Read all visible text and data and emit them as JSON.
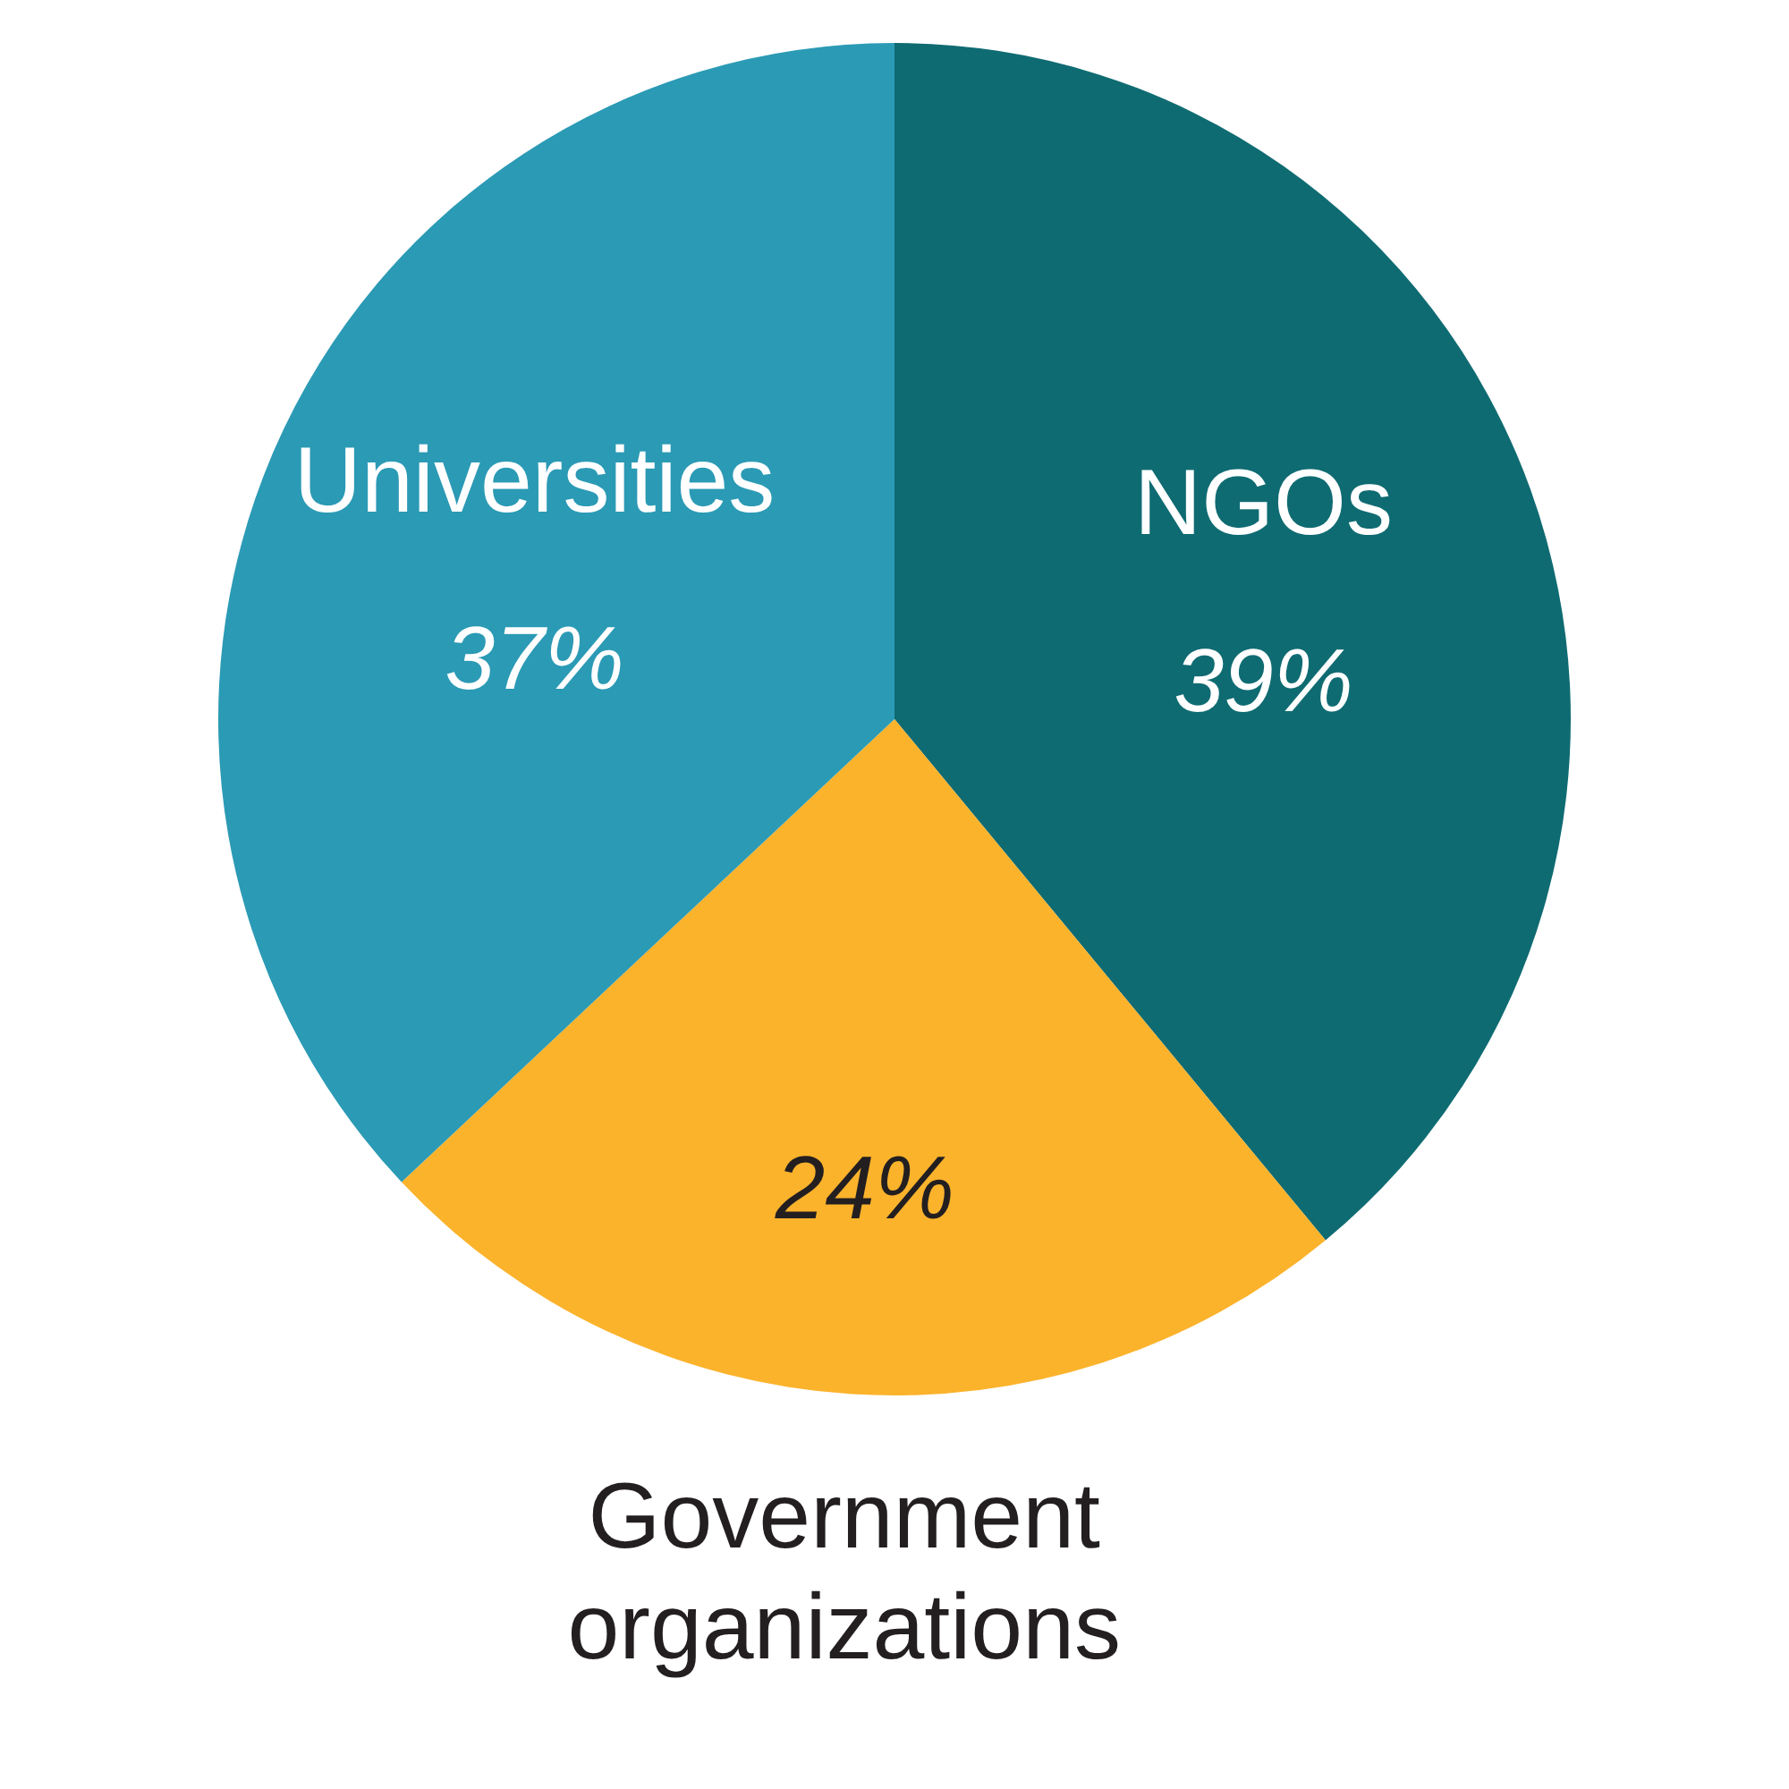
{
  "chart_data": {
    "type": "pie",
    "categories": [
      "NGOs",
      "Government organizations",
      "Universities"
    ],
    "values": [
      39,
      24,
      37
    ],
    "colors": [
      "#0f6b72",
      "#fbb32c",
      "#2b9ab5"
    ],
    "value_labels": [
      "39%",
      "24%",
      "37%"
    ]
  }
}
